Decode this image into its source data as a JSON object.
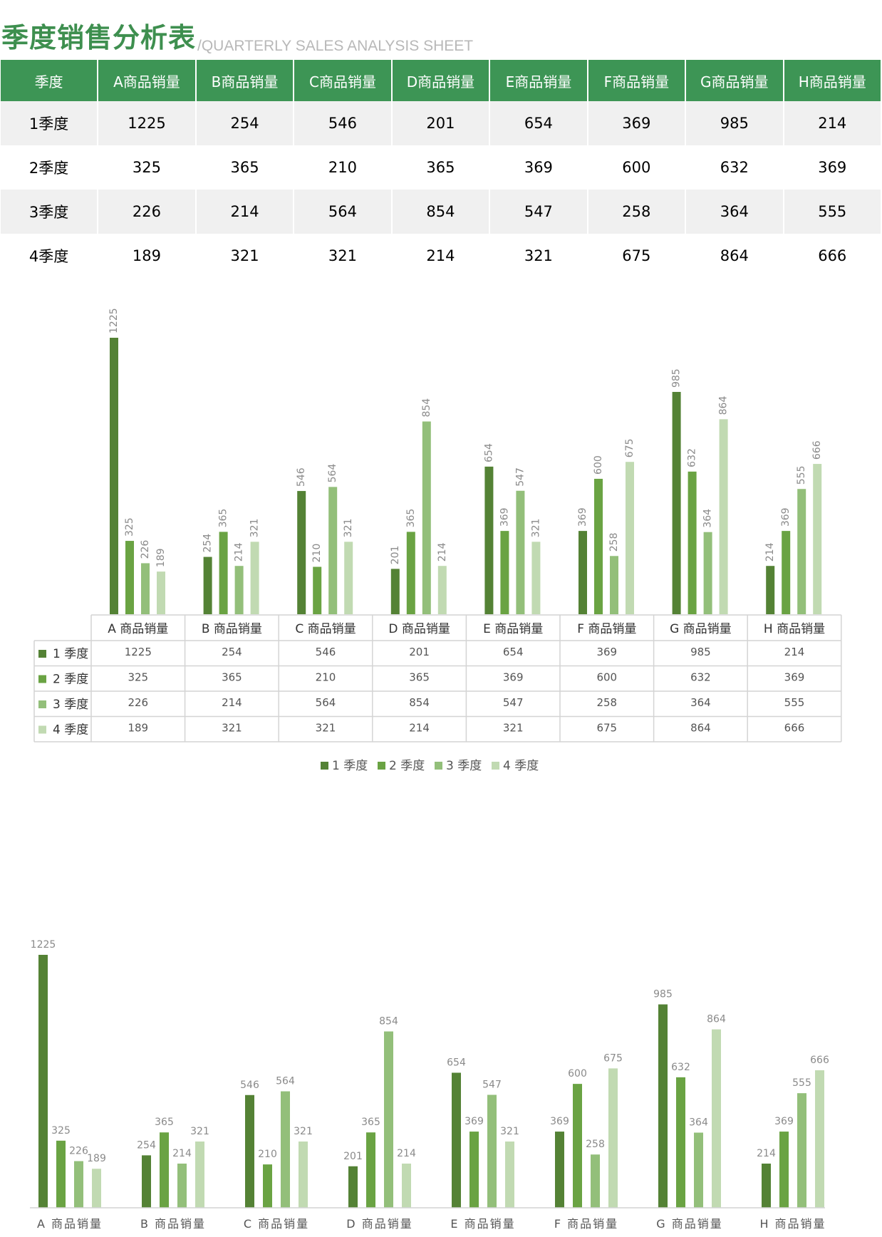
{
  "header": {
    "title": "季度销售分析表",
    "subtitle": "/QUARTERLY SALES ANALYSIS SHEET"
  },
  "table": {
    "columns": [
      "季度",
      "A商品销量",
      "B商品销量",
      "C商品销量",
      "D商品销量",
      "E商品销量",
      "F商品销量",
      "G商品销量",
      "H商品销量"
    ],
    "rows": [
      [
        "1季度",
        "1225",
        "254",
        "546",
        "201",
        "654",
        "369",
        "985",
        "214"
      ],
      [
        "2季度",
        "325",
        "365",
        "210",
        "365",
        "369",
        "600",
        "632",
        "369"
      ],
      [
        "3季度",
        "226",
        "214",
        "564",
        "854",
        "547",
        "258",
        "364",
        "555"
      ],
      [
        "4季度",
        "189",
        "321",
        "321",
        "214",
        "321",
        "675",
        "864",
        "666"
      ]
    ]
  },
  "colors": {
    "header_bg": "#3d9555",
    "title": "#3e8f4f",
    "series": [
      "#548235",
      "#6aa343",
      "#93bf7a",
      "#c1dab2"
    ]
  },
  "chart_data": [
    {
      "type": "bar",
      "categories": [
        "A 商品销量",
        "B 商品销量",
        "C 商品销量",
        "D 商品销量",
        "E 商品销量",
        "F 商品销量",
        "G 商品销量",
        "H 商品销量"
      ],
      "series": [
        {
          "name": "1 季度",
          "values": [
            1225,
            254,
            546,
            201,
            654,
            369,
            985,
            214
          ]
        },
        {
          "name": "2 季度",
          "values": [
            325,
            365,
            210,
            365,
            369,
            600,
            632,
            369
          ]
        },
        {
          "name": "3 季度",
          "values": [
            226,
            214,
            564,
            854,
            547,
            258,
            364,
            555
          ]
        },
        {
          "name": "4 季度",
          "values": [
            189,
            321,
            321,
            214,
            321,
            675,
            864,
            666
          ]
        }
      ],
      "ylim": [
        0,
        1225
      ],
      "data_labels": "rotated",
      "data_table": true,
      "legend": {
        "position": "bottom",
        "entries": [
          "1 季度",
          "2 季度",
          "3 季度",
          "4 季度"
        ]
      },
      "grid": false
    },
    {
      "type": "bar",
      "categories": [
        "A 商品销量",
        "B 商品销量",
        "C 商品销量",
        "D 商品销量",
        "E 商品销量",
        "F 商品销量",
        "G 商品销量",
        "H 商品销量"
      ],
      "series": [
        {
          "name": "1 季度",
          "values": [
            1225,
            254,
            546,
            201,
            654,
            369,
            985,
            214
          ]
        },
        {
          "name": "2 季度",
          "values": [
            325,
            365,
            210,
            365,
            369,
            600,
            632,
            369
          ]
        },
        {
          "name": "3 季度",
          "values": [
            226,
            214,
            564,
            854,
            547,
            258,
            364,
            555
          ]
        },
        {
          "name": "4 季度",
          "values": [
            189,
            321,
            321,
            214,
            321,
            675,
            864,
            666
          ]
        }
      ],
      "ylim": [
        0,
        1225
      ],
      "data_labels": "horizontal",
      "legend": "none",
      "grid": false
    }
  ]
}
